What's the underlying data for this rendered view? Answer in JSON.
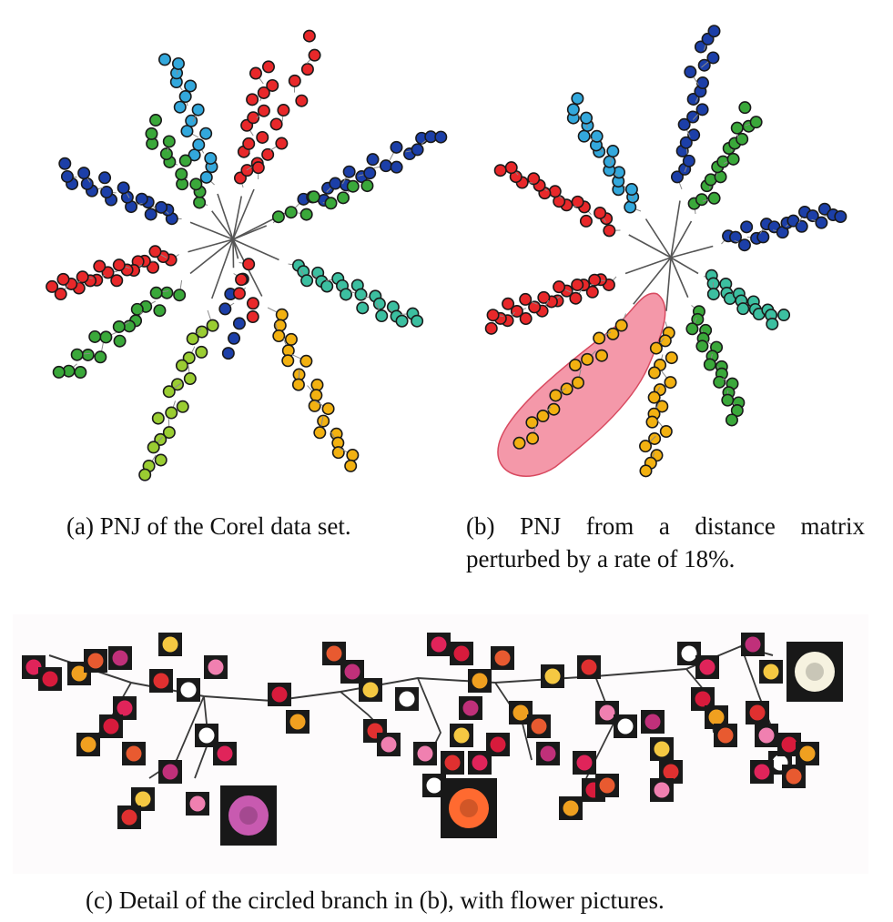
{
  "captions": {
    "a": "(a) PNJ of the Corel data set.",
    "b_line1": "(b) PNJ from a distance matrix",
    "b_line2": "perturbed by a rate of 18%.",
    "c": "(c) Detail of the circled branch in (b), with flower pictures."
  },
  "colors": {
    "red": "#e8282a",
    "dark_blue": "#1c3fa8",
    "light_blue": "#33a8dc",
    "green": "#3aa83a",
    "teal": "#3cbfa0",
    "yellow_green": "#9acd32",
    "orange": "#f2b111",
    "highlight": "#f07088",
    "edge": "#555555"
  }
}
